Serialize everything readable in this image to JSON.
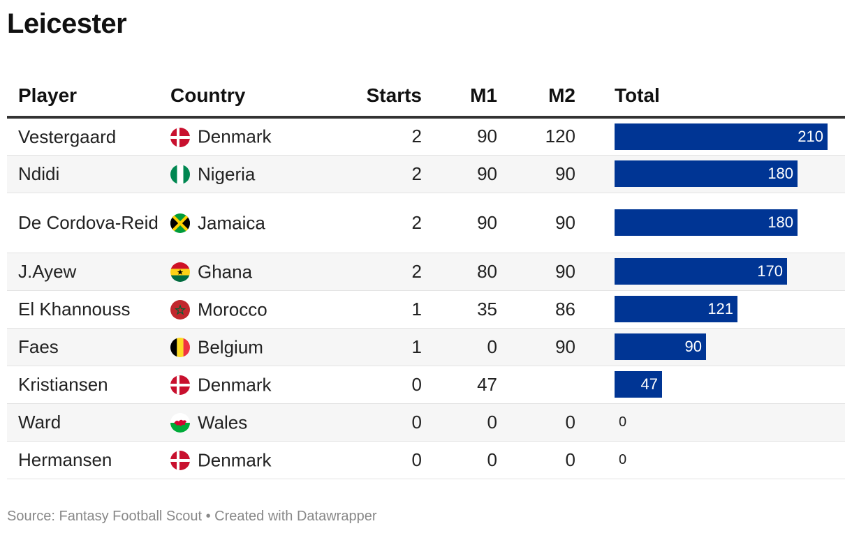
{
  "title": "Leicester",
  "columns": {
    "player": "Player",
    "country": "Country",
    "starts": "Starts",
    "m1": "M1",
    "m2": "M2",
    "total": "Total"
  },
  "flag_icons": {
    "Denmark": "denmark-flag-icon",
    "Nigeria": "nigeria-flag-icon",
    "Jamaica": "jamaica-flag-icon",
    "Ghana": "ghana-flag-icon",
    "Morocco": "morocco-flag-icon",
    "Belgium": "belgium-flag-icon",
    "Wales": "wales-flag-icon"
  },
  "colors": {
    "bar": "#003594",
    "row_alt": "#f6f6f6"
  },
  "footer": "Source: Fantasy Football Scout • Created with Datawrapper",
  "chart_data": {
    "type": "table",
    "bar_column": "Total",
    "bar_max": 220,
    "rows": [
      {
        "player": "Vestergaard",
        "country": "Denmark",
        "starts": "2",
        "m1": "90",
        "m2": "120",
        "total": 210
      },
      {
        "player": "Ndidi",
        "country": "Nigeria",
        "starts": "2",
        "m1": "90",
        "m2": "90",
        "total": 180
      },
      {
        "player": "De Cordova-Reid",
        "country": "Jamaica",
        "starts": "2",
        "m1": "90",
        "m2": "90",
        "total": 180
      },
      {
        "player": "J.Ayew",
        "country": "Ghana",
        "starts": "2",
        "m1": "80",
        "m2": "90",
        "total": 170
      },
      {
        "player": "El Khannouss",
        "country": "Morocco",
        "starts": "1",
        "m1": "35",
        "m2": "86",
        "total": 121
      },
      {
        "player": "Faes",
        "country": "Belgium",
        "starts": "1",
        "m1": "0",
        "m2": "90",
        "total": 90
      },
      {
        "player": "Kristiansen",
        "country": "Denmark",
        "starts": "0",
        "m1": "47",
        "m2": "",
        "total": 47
      },
      {
        "player": "Ward",
        "country": "Wales",
        "starts": "0",
        "m1": "0",
        "m2": "0",
        "total": 0
      },
      {
        "player": "Hermansen",
        "country": "Denmark",
        "starts": "0",
        "m1": "0",
        "m2": "0",
        "total": 0
      }
    ]
  }
}
